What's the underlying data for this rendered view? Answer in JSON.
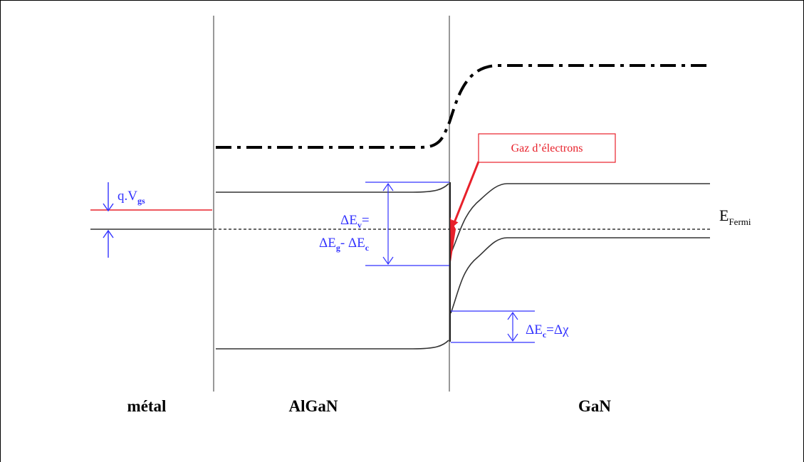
{
  "regions": {
    "metal": "métal",
    "algan": "AlGaN",
    "gan": "GaN"
  },
  "annotations": {
    "gas_label": "Gaz d’électrons",
    "vgs_prefix": "q.V",
    "vgs_sub": "gs",
    "fermi_main": "E",
    "fermi_sub": "Fermi",
    "dEv_main": "ΔE",
    "dEv_sub": "v",
    "dEv_tail": "=",
    "dEg_main": "ΔE",
    "dEg_sub": "g",
    "dEg_mid": "- ΔE",
    "dEg_sub2": "c",
    "dEc_main": "ΔE",
    "dEc_sub": "c",
    "dEc_tail": "=Δχ"
  },
  "colors": {
    "band": "#333333",
    "blue": "#3333ff",
    "red": "#e8202a",
    "fermi": "#333333"
  }
}
